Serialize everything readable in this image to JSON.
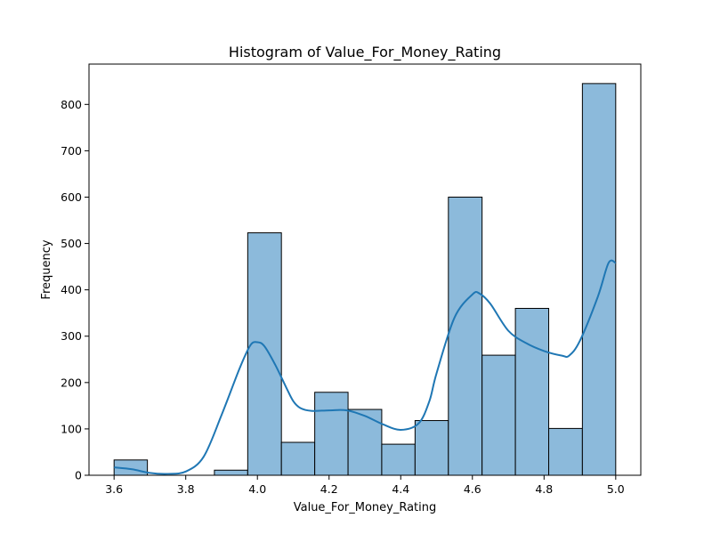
{
  "chart_data": {
    "type": "bar",
    "subtype": "histogram",
    "title": "Histogram of Value_For_Money_Rating",
    "xlabel": "Value_For_Money_Rating",
    "ylabel": "Frequency",
    "xlim": [
      3.53,
      5.07
    ],
    "ylim": [
      0,
      887
    ],
    "xticks": [
      3.6,
      3.8,
      4.0,
      4.2,
      4.4,
      4.6,
      4.8,
      5.0
    ],
    "xtick_labels": [
      "3.6",
      "3.8",
      "4.0",
      "4.2",
      "4.4",
      "4.6",
      "4.8",
      "5.0"
    ],
    "yticks": [
      0,
      100,
      200,
      300,
      400,
      500,
      600,
      700,
      800
    ],
    "ytick_labels": [
      "0",
      "100",
      "200",
      "300",
      "400",
      "500",
      "600",
      "700",
      "800"
    ],
    "bins": [
      {
        "x0": 3.6,
        "x1": 3.693,
        "count": 33
      },
      {
        "x0": 3.693,
        "x1": 3.787,
        "count": 0
      },
      {
        "x0": 3.787,
        "x1": 3.88,
        "count": 0
      },
      {
        "x0": 3.88,
        "x1": 3.973,
        "count": 11
      },
      {
        "x0": 3.973,
        "x1": 4.067,
        "count": 523
      },
      {
        "x0": 4.067,
        "x1": 4.16,
        "count": 71
      },
      {
        "x0": 4.16,
        "x1": 4.253,
        "count": 179
      },
      {
        "x0": 4.253,
        "x1": 4.347,
        "count": 142
      },
      {
        "x0": 4.347,
        "x1": 4.44,
        "count": 67
      },
      {
        "x0": 4.44,
        "x1": 4.533,
        "count": 118
      },
      {
        "x0": 4.533,
        "x1": 4.627,
        "count": 600
      },
      {
        "x0": 4.627,
        "x1": 4.72,
        "count": 259
      },
      {
        "x0": 4.72,
        "x1": 4.813,
        "count": 360
      },
      {
        "x0": 4.813,
        "x1": 4.907,
        "count": 101
      },
      {
        "x0": 4.907,
        "x1": 5.0,
        "count": 845
      }
    ],
    "kde": {
      "x": [
        3.6,
        3.65,
        3.7,
        3.75,
        3.8,
        3.85,
        3.9,
        3.95,
        3.98,
        4.0,
        4.02,
        4.05,
        4.08,
        4.1,
        4.12,
        4.15,
        4.2,
        4.25,
        4.3,
        4.35,
        4.4,
        4.45,
        4.48,
        4.5,
        4.55,
        4.6,
        4.62,
        4.65,
        4.7,
        4.75,
        4.8,
        4.85,
        4.87,
        4.9,
        4.95,
        4.98,
        5.0
      ],
      "y": [
        17,
        13,
        5,
        3,
        8,
        40,
        130,
        230,
        280,
        287,
        278,
        238,
        190,
        160,
        145,
        139,
        140,
        140,
        128,
        110,
        98,
        112,
        160,
        220,
        340,
        390,
        392,
        370,
        312,
        285,
        268,
        258,
        258,
        290,
        385,
        458,
        458
      ]
    },
    "bar_fill": "#8cbadb",
    "bar_edge": "#000000",
    "kde_color": "#1f77b4",
    "grid": false,
    "legend": "none"
  }
}
